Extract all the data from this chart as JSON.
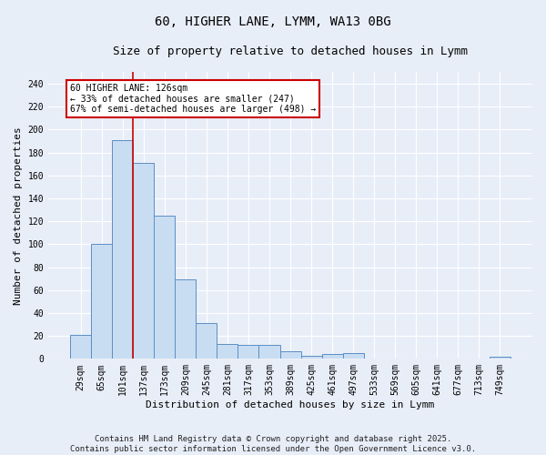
{
  "title_line1": "60, HIGHER LANE, LYMM, WA13 0BG",
  "title_line2": "Size of property relative to detached houses in Lymm",
  "xlabel": "Distribution of detached houses by size in Lymm",
  "ylabel": "Number of detached properties",
  "bar_labels": [
    "29sqm",
    "65sqm",
    "101sqm",
    "137sqm",
    "173sqm",
    "209sqm",
    "245sqm",
    "281sqm",
    "317sqm",
    "353sqm",
    "389sqm",
    "425sqm",
    "461sqm",
    "497sqm",
    "533sqm",
    "569sqm",
    "605sqm",
    "641sqm",
    "677sqm",
    "713sqm",
    "749sqm"
  ],
  "bar_values": [
    21,
    100,
    191,
    171,
    125,
    69,
    31,
    13,
    12,
    12,
    7,
    3,
    4,
    5,
    0,
    0,
    0,
    0,
    0,
    0,
    2
  ],
  "bar_color": "#c9ddf2",
  "bar_edge_color": "#5b8ec4",
  "background_color": "#e8eef8",
  "grid_color": "#ffffff",
  "vline_x_index": 2,
  "vline_color": "#cc0000",
  "annotation_text": "60 HIGHER LANE: 126sqm\n← 33% of detached houses are smaller (247)\n67% of semi-detached houses are larger (498) →",
  "annotation_box_color": "#ffffff",
  "annotation_box_edge": "#cc0000",
  "ylim": [
    0,
    250
  ],
  "yticks": [
    0,
    20,
    40,
    60,
    80,
    100,
    120,
    140,
    160,
    180,
    200,
    220,
    240
  ],
  "footnote": "Contains HM Land Registry data © Crown copyright and database right 2025.\nContains public sector information licensed under the Open Government Licence v3.0.",
  "title_fontsize": 10,
  "subtitle_fontsize": 9,
  "label_fontsize": 8,
  "tick_fontsize": 7,
  "annot_fontsize": 7,
  "footnote_fontsize": 6.5
}
